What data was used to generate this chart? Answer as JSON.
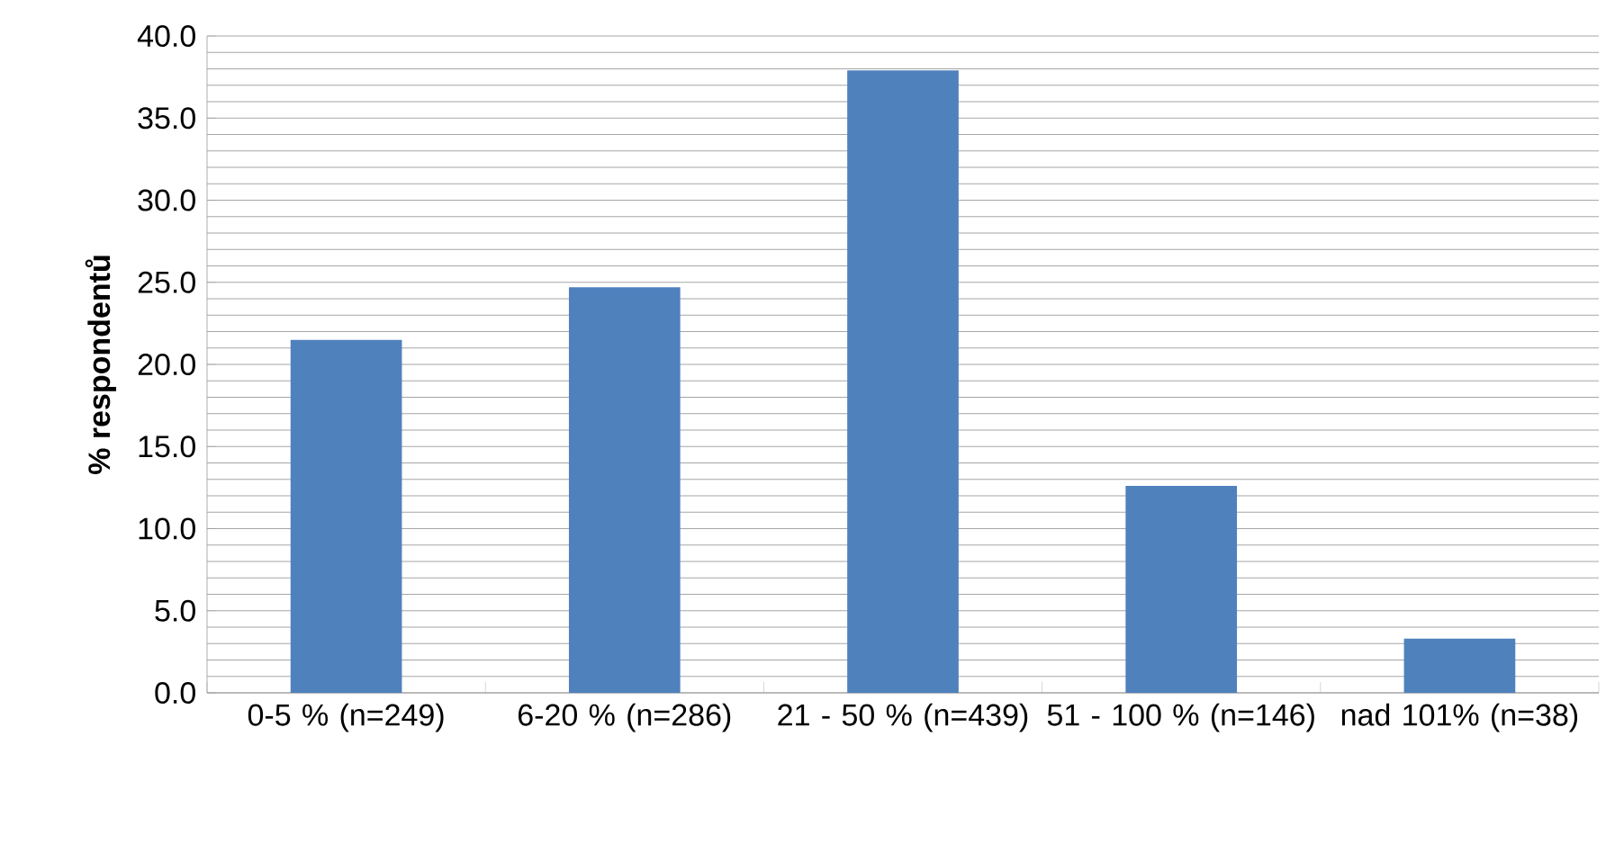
{
  "chart_data": {
    "type": "bar",
    "ylabel": "% respondentů",
    "categories": [
      "0-5 % (n=249)",
      "6-20 % (n=286)",
      "21 - 50 % (n=439)",
      "51 - 100 % (n=146)",
      "nad 101% (n=38)"
    ],
    "values": [
      21.5,
      24.7,
      37.9,
      12.6,
      3.3
    ],
    "color": "#4f81bd",
    "ylim": [
      0,
      40
    ],
    "yticks": [
      {
        "value": 0,
        "label": "0.0"
      },
      {
        "value": 5,
        "label": "5.0"
      },
      {
        "value": 10,
        "label": "10.0"
      },
      {
        "value": 15,
        "label": "15.0"
      },
      {
        "value": 20,
        "label": "20.0"
      },
      {
        "value": 25,
        "label": "25.0"
      },
      {
        "value": 30,
        "label": "30.0"
      },
      {
        "value": 35,
        "label": "35.0"
      },
      {
        "value": 40,
        "label": "40.0"
      }
    ],
    "grid": true
  }
}
